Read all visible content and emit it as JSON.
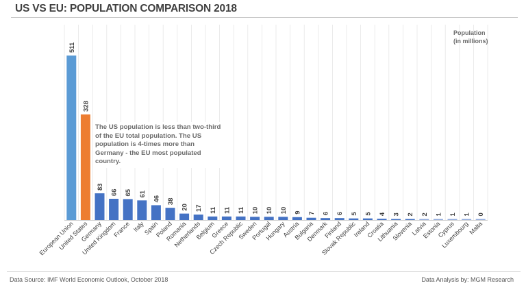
{
  "title": "US VS EU: POPULATION COMPARISON 2018",
  "chart_data": {
    "type": "bar",
    "title": "US VS EU: POPULATION COMPARISON 2018",
    "ylabel": "Population (in millions)",
    "ylim": [
      0,
      511
    ],
    "grid": "vertical",
    "categories": [
      "European Union",
      "United States",
      "Germany",
      "United Kingdom",
      "France",
      "Italy",
      "Spain",
      "Poland",
      "Romania",
      "Netherlands",
      "Belgium",
      "Greece",
      "Czech Republic",
      "Sweden",
      "Portugal",
      "Hungary",
      "Austria",
      "Bulgaria",
      "Denmark",
      "Finland",
      "Slovak Republic",
      "Ireland",
      "Croatia",
      "Lithuania",
      "Slovenia",
      "Latvia",
      "Estonia",
      "Cyprus",
      "Luxembourg",
      "Malta"
    ],
    "values": [
      511,
      328,
      83,
      66,
      65,
      61,
      46,
      38,
      20,
      17,
      11,
      11,
      11,
      10,
      10,
      10,
      9,
      7,
      6,
      6,
      5,
      5,
      4,
      3,
      2,
      2,
      1,
      1,
      1,
      0
    ],
    "colors": {
      "eu": "#5b9bd5",
      "us": "#ed7d31",
      "country": "#4472c4",
      "small_country": "#8faadc"
    }
  },
  "annotation": "The US population is less than two-third of the EU total population. The US population is 4-times more than Germany - the EU most populated country.",
  "unit_label_line1": "Population",
  "unit_label_line2": "(in millions)",
  "footer": {
    "source": "Data Source: IMF World Economic Outlook, October 2018",
    "analysis": "Data Analysis by: MGM Research"
  }
}
